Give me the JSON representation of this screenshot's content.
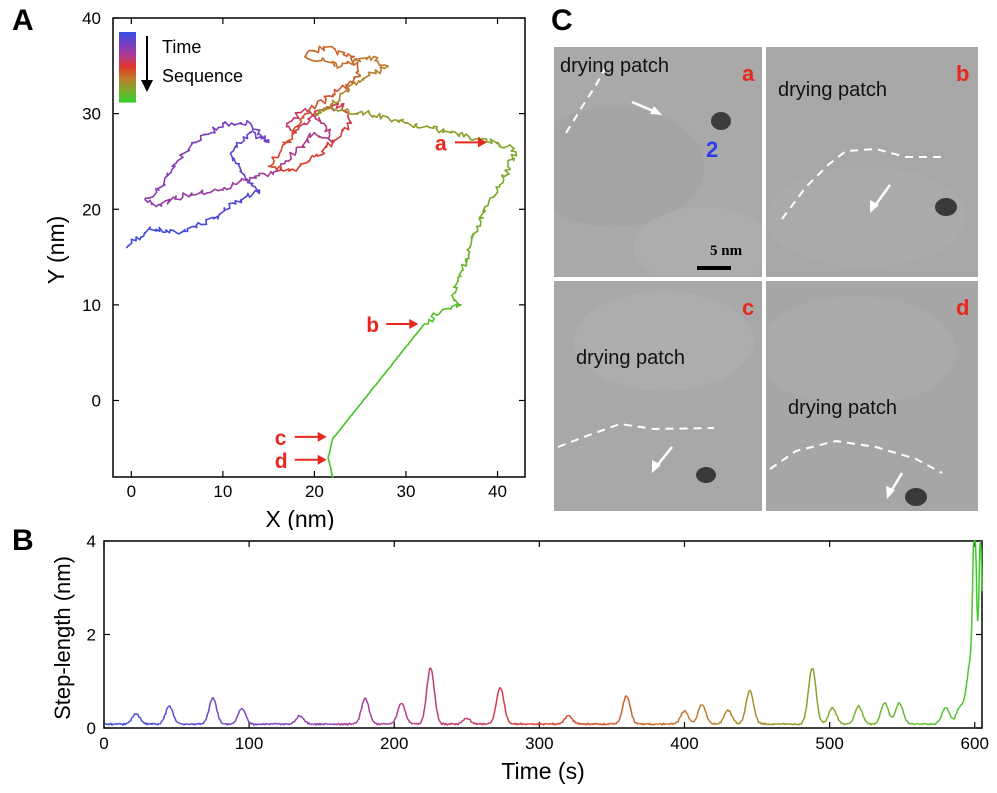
{
  "panels": {
    "a": "A",
    "b": "B",
    "c": "C"
  },
  "colors": {
    "annotation_red": "#e8281e",
    "label_blue": "#2b3ff0",
    "dashed_line": "#ffffff"
  },
  "chart_data": [
    {
      "type": "line",
      "panel": "A",
      "xlabel": "X (nm)",
      "ylabel": "Y (nm)",
      "xlim": [
        -2,
        43
      ],
      "ylim": [
        -8,
        40
      ],
      "xticks": [
        0,
        10,
        20,
        30,
        40
      ],
      "yticks": [
        0,
        10,
        20,
        30,
        40
      ],
      "legend": {
        "title_line1": "Time",
        "title_line2": "Sequence",
        "placement": "top-left"
      },
      "color_sequence": [
        "#3a4be0",
        "#7a3fc0",
        "#b03a90",
        "#e03a28",
        "#c0782a",
        "#7fa82a",
        "#3ccc2a"
      ],
      "trajectory": {
        "x": [
          -0.5,
          2,
          5,
          9,
          12,
          14,
          12,
          11,
          13,
          15,
          13,
          10,
          7,
          5,
          3,
          1.5,
          3,
          6,
          10,
          12,
          16,
          18,
          20,
          22,
          21,
          19,
          17,
          18,
          20,
          23,
          24,
          22,
          20,
          18,
          15,
          17,
          19,
          22,
          25,
          24,
          21,
          19,
          23,
          26,
          28,
          26,
          24,
          22,
          20,
          22,
          26,
          30,
          35,
          40,
          42,
          40,
          38,
          37,
          36,
          35,
          36,
          34,
          32,
          22,
          21.5,
          22
        ],
        "y": [
          16,
          18,
          17.5,
          19,
          21,
          22,
          24,
          26,
          28,
          27,
          29,
          29,
          27,
          25,
          22,
          21,
          20.5,
          21.5,
          22,
          23,
          24,
          26,
          28,
          27,
          29,
          30.5,
          29,
          28,
          30,
          31,
          29,
          27,
          25.5,
          24,
          24.5,
          27,
          30,
          32,
          34,
          36,
          37,
          36,
          35,
          36,
          35,
          34,
          33,
          31,
          30,
          30.5,
          30,
          29,
          28,
          27,
          26,
          22,
          19,
          16,
          13,
          11,
          10,
          9.5,
          8,
          -4,
          -6,
          -8
        ]
      },
      "markers": [
        {
          "label": "a",
          "x": 39.5,
          "y": 27
        },
        {
          "label": "b",
          "x": 32,
          "y": 8
        },
        {
          "label": "c",
          "x": 22,
          "y": -3.8
        },
        {
          "label": "d",
          "x": 22,
          "y": -6.2
        }
      ]
    },
    {
      "type": "line",
      "panel": "B",
      "xlabel": "Time (s)",
      "ylabel": "Step-length (nm)",
      "xlim": [
        0,
        605
      ],
      "ylim": [
        0,
        4
      ],
      "xticks": [
        0,
        100,
        200,
        300,
        400,
        500,
        600
      ],
      "yticks": [
        0,
        2,
        4
      ],
      "peaks": {
        "t": [
          22,
          45,
          75,
          95,
          135,
          180,
          205,
          225,
          250,
          273,
          320,
          360,
          400,
          412,
          430,
          445,
          488,
          502,
          520,
          538,
          548,
          580,
          590,
          597,
          600,
          604
        ],
        "h": [
          0.22,
          0.38,
          0.55,
          0.33,
          0.18,
          0.55,
          0.45,
          1.2,
          0.12,
          0.78,
          0.18,
          0.6,
          0.28,
          0.42,
          0.3,
          0.72,
          1.2,
          0.35,
          0.38,
          0.45,
          0.45,
          0.35,
          0.35,
          1.3,
          4.0,
          4.0
        ]
      }
    }
  ],
  "panel_c": {
    "tiles": [
      {
        "letter": "a",
        "label": "drying patch",
        "num": "2",
        "scale": "5 nm"
      },
      {
        "letter": "b",
        "label": "drying patch"
      },
      {
        "letter": "c",
        "label": "drying patch"
      },
      {
        "letter": "d",
        "label": "drying patch"
      }
    ]
  }
}
